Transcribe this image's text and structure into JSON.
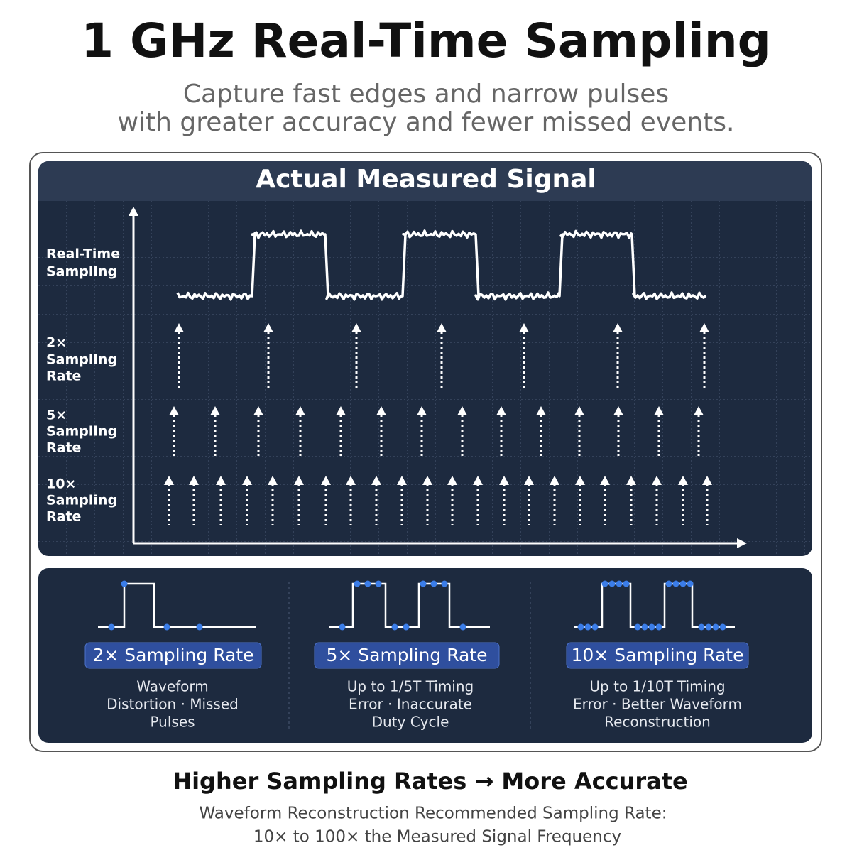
{
  "header": {
    "title": "1 GHz Real-Time Sampling",
    "subtitle": [
      "Capture fast edges and narrow pulses",
      "with greater accuracy and fewer missed events."
    ]
  },
  "panel": {
    "title": "Actual Measured Signal",
    "rows": [
      {
        "lines": [
          "Real-Time",
          "Sampling"
        ]
      },
      {
        "lines": [
          "2×",
          "Sampling",
          "Rate"
        ]
      },
      {
        "lines": [
          "5×",
          "Sampling",
          "Rate"
        ]
      },
      {
        "lines": [
          "10×",
          "Sampling",
          "Rate"
        ]
      }
    ]
  },
  "cards": [
    {
      "label": "2× Sampling Rate",
      "lines": [
        "Waveform",
        "Distortion · Missed",
        "Pulses"
      ]
    },
    {
      "label": "5× Sampling Rate",
      "lines": [
        "Up to 1/5T Timing",
        "Error · Inaccurate",
        "Duty Cycle"
      ]
    },
    {
      "label": "10× Sampling Rate",
      "lines": [
        "Up to 1/10T Timing",
        "Error · Better Waveform",
        "Reconstruction"
      ]
    }
  ],
  "footer": {
    "title": "Higher Sampling Rates → More Accurate",
    "lines": [
      "Waveform Reconstruction Recommended Sampling Rate:",
      "10× to 100× the Measured Signal Frequency"
    ]
  }
}
